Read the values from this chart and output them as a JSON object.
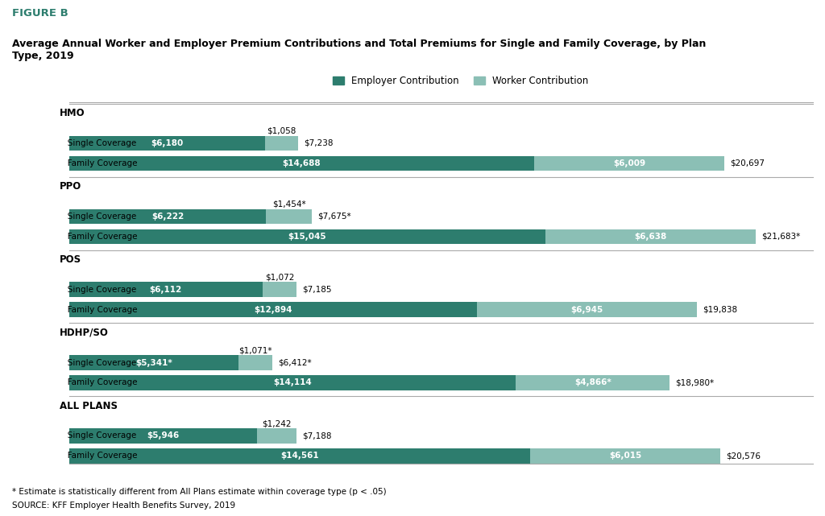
{
  "figure_label": "FIGURE B",
  "title": "Average Annual Worker and Employer Premium Contributions and Total Premiums for Single and Family Coverage, by Plan\nType, 2019",
  "employer_color": "#2d7d6e",
  "worker_color": "#8bbfb5",
  "background_color": "#ffffff",
  "footnote1": "* Estimate is statistically different from All Plans estimate within coverage type (p < .05)",
  "footnote2": "SOURCE: KFF Employer Health Benefits Survey, 2019",
  "groups": [
    {
      "label": "HMO",
      "rows": [
        {
          "name": "Single Coverage",
          "worker_label_above": "$1,058",
          "employer": 6180,
          "worker": 1058,
          "total_label": "$7,238",
          "employer_label": "$6,180",
          "worker_bar_label": null
        },
        {
          "name": "Family Coverage",
          "worker_label_above": null,
          "employer": 14688,
          "worker": 6009,
          "total_label": "$20,697",
          "employer_label": "$14,688",
          "worker_bar_label": "$6,009"
        }
      ]
    },
    {
      "label": "PPO",
      "rows": [
        {
          "name": "Single Coverage",
          "worker_label_above": "$1,454*",
          "employer": 6222,
          "worker": 1454,
          "total_label": "$7,675*",
          "employer_label": "$6,222",
          "worker_bar_label": null
        },
        {
          "name": "Family Coverage",
          "worker_label_above": null,
          "employer": 15045,
          "worker": 6638,
          "total_label": "$21,683*",
          "employer_label": "$15,045",
          "worker_bar_label": "$6,638"
        }
      ]
    },
    {
      "label": "POS",
      "rows": [
        {
          "name": "Single Coverage",
          "worker_label_above": "$1,072",
          "employer": 6112,
          "worker": 1072,
          "total_label": "$7,185",
          "employer_label": "$6,112",
          "worker_bar_label": null
        },
        {
          "name": "Family Coverage",
          "worker_label_above": null,
          "employer": 12894,
          "worker": 6945,
          "total_label": "$19,838",
          "employer_label": "$12,894",
          "worker_bar_label": "$6,945"
        }
      ]
    },
    {
      "label": "HDHP/SO",
      "rows": [
        {
          "name": "Single Coverage",
          "worker_label_above": "$1,071*",
          "employer": 5341,
          "worker": 1071,
          "total_label": "$6,412*",
          "employer_label": "$5,341*",
          "worker_bar_label": null
        },
        {
          "name": "Family Coverage",
          "worker_label_above": null,
          "employer": 14114,
          "worker": 4866,
          "total_label": "$18,980*",
          "employer_label": "$14,114",
          "worker_bar_label": "$4,866*"
        }
      ]
    },
    {
      "label": "ALL PLANS",
      "rows": [
        {
          "name": "Single Coverage",
          "worker_label_above": "$1,242",
          "employer": 5946,
          "worker": 1242,
          "total_label": "$7,188",
          "employer_label": "$5,946",
          "worker_bar_label": null
        },
        {
          "name": "Family Coverage",
          "worker_label_above": null,
          "employer": 14561,
          "worker": 6015,
          "total_label": "$20,576",
          "employer_label": "$14,561",
          "worker_bar_label": "$6,015"
        }
      ]
    }
  ]
}
